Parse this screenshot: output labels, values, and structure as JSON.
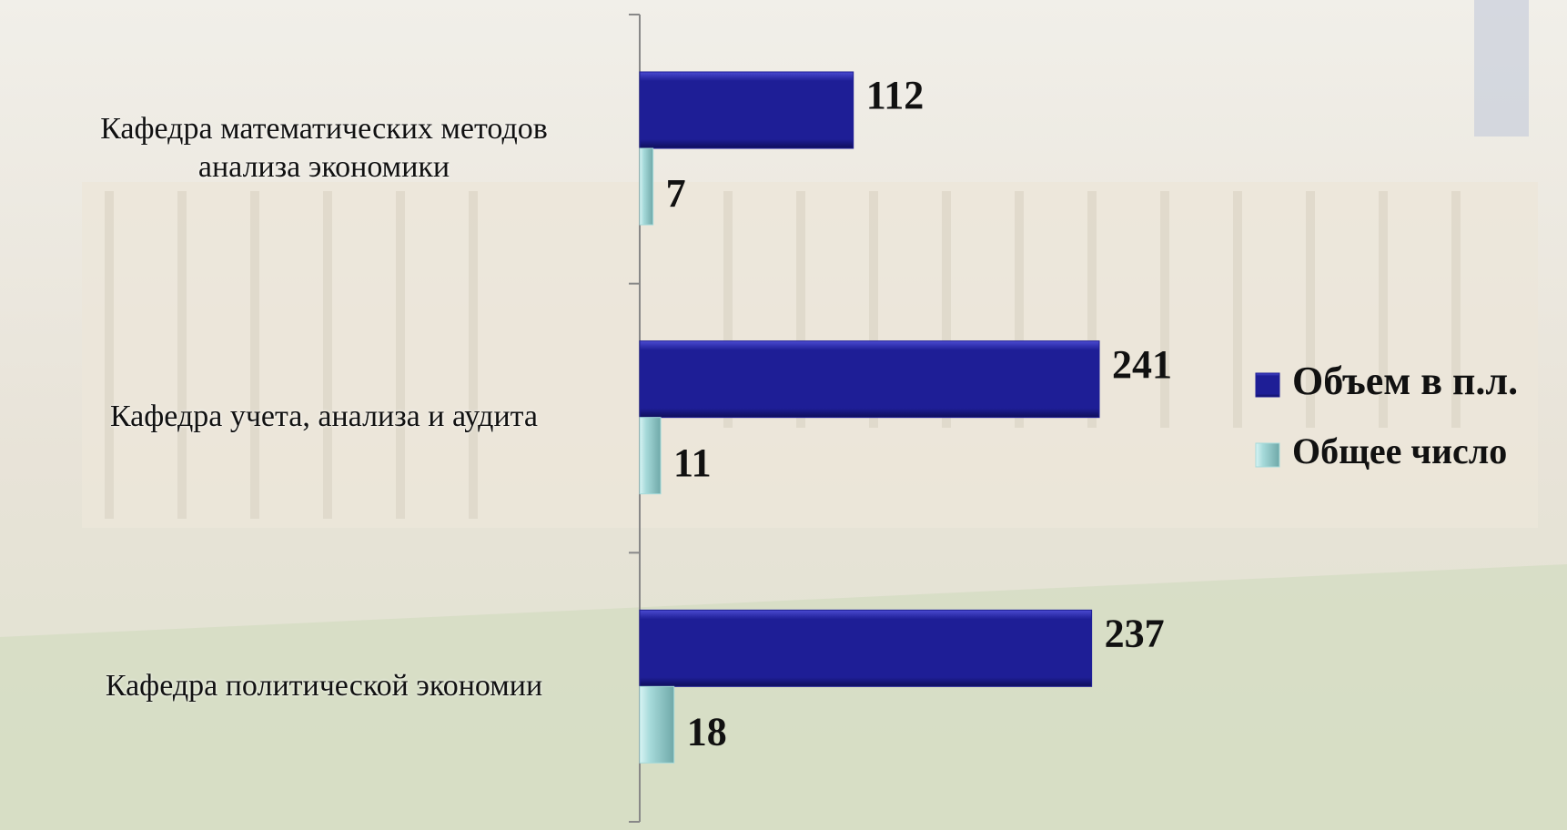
{
  "chart_data": {
    "type": "hbar",
    "categories": [
      "Кафедра математических методов\nанализа экономики",
      "Кафедра учета, анализа и аудита",
      "Кафедра политической экономии"
    ],
    "series": [
      {
        "name": "Объем в п.л.",
        "color": "#1e1e96",
        "values": [
          112,
          241,
          237
        ]
      },
      {
        "name": "Общее число",
        "color": "#a6dada",
        "values": [
          7,
          11,
          18
        ]
      }
    ],
    "legend": "right"
  }
}
